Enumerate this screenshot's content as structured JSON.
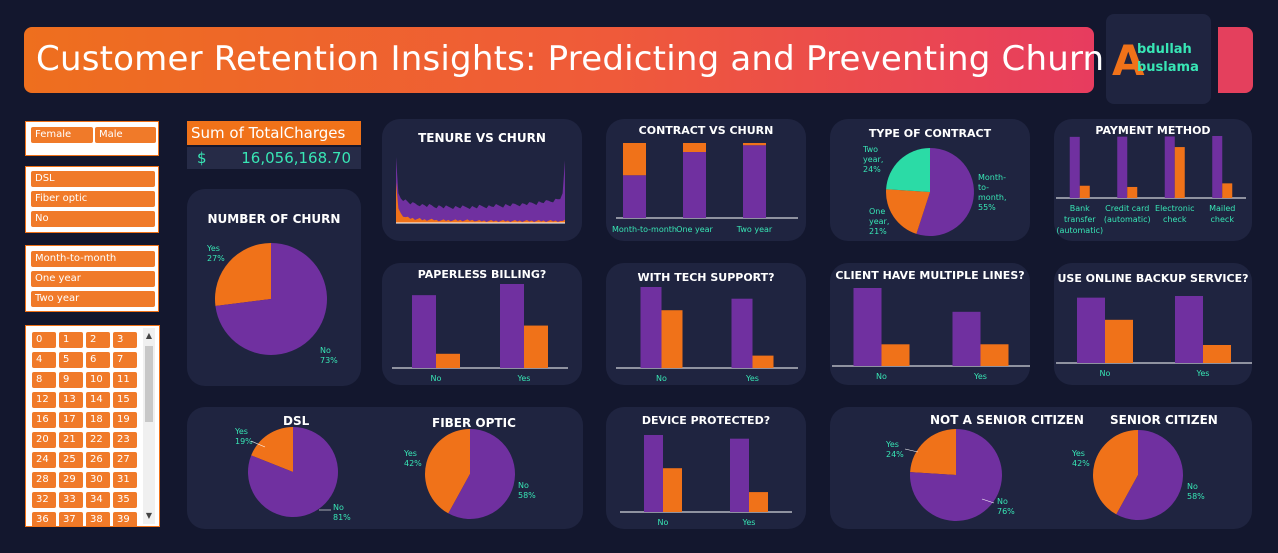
{
  "header": {
    "title": "Customer Retention Insights: Predicting and Preventing Churn"
  },
  "logo": {
    "initial": "A",
    "line1": "bdullah",
    "line2": "buslama"
  },
  "slicers": {
    "gender": [
      "Female",
      "Male"
    ],
    "internet": [
      "DSL",
      "Fiber optic",
      "No"
    ],
    "contract": [
      "Month-to-month",
      "One year",
      "Two year"
    ],
    "tenure": [
      "0",
      "1",
      "2",
      "3",
      "4",
      "5",
      "6",
      "7",
      "8",
      "9",
      "10",
      "11",
      "12",
      "13",
      "14",
      "15",
      "16",
      "17",
      "18",
      "19",
      "20",
      "21",
      "22",
      "23",
      "24",
      "25",
      "26",
      "27",
      "28",
      "29",
      "30",
      "31",
      "32",
      "33",
      "34",
      "35",
      "36",
      "37",
      "38",
      "39"
    ]
  },
  "kpi": {
    "label": "Sum of TotalCharges",
    "currency": "$",
    "value": "16,056,168.70"
  },
  "colors": {
    "churn_no": "#7030a0",
    "churn_yes": "#f07219",
    "teal": "#2bdba6",
    "accent_text": "#38e6b5"
  },
  "charts": {
    "number_of_churn": {
      "title": "NUMBER OF CHURN",
      "chart_data": {
        "type": "pie",
        "slices": [
          {
            "label": "Yes",
            "pct": "27%",
            "value": 27
          },
          {
            "label": "No",
            "pct": "73%",
            "value": 73
          }
        ]
      }
    },
    "tenure_vs_churn": {
      "title": "TENURE VS CHURN",
      "chart_data": {
        "type": "area",
        "x_range": [
          0,
          72
        ],
        "series": [
          {
            "values": [
              100,
              45,
              38,
              36,
              34,
              32,
              30,
              29,
              29,
              28,
              28,
              27,
              27,
              26,
              26,
              26,
              25,
              25,
              25,
              25,
              24,
              24,
              24,
              24,
              24,
              24,
              24,
              24,
              24,
              24,
              24,
              24,
              24,
              24,
              24,
              25,
              25,
              25,
              25,
              25,
              25,
              26,
              26,
              26,
              26,
              26,
              27,
              27,
              27,
              27,
              28,
              28,
              28,
              28,
              29,
              29,
              29,
              30,
              30,
              30,
              31,
              31,
              32,
              32,
              33,
              33,
              34,
              35,
              36,
              38,
              45,
              95
            ]
          },
          {
            "values": [
              62,
              22,
              14,
              11,
              9,
              8,
              7,
              7,
              6,
              6,
              6,
              5,
              5,
              5,
              5,
              5,
              5,
              4,
              4,
              4,
              4,
              4,
              4,
              4,
              4,
              4,
              4,
              4,
              4,
              4,
              4,
              4,
              4,
              4,
              3,
              3,
              3,
              3,
              3,
              3,
              3,
              3,
              3,
              3,
              3,
              3,
              3,
              3,
              3,
              3,
              3,
              3,
              3,
              3,
              3,
              3,
              3,
              3,
              3,
              3,
              3,
              3,
              3,
              3,
              3,
              3,
              3,
              3,
              3,
              3,
              3,
              5
            ]
          }
        ]
      }
    },
    "contract_vs_churn": {
      "title": "CONTRACT VS CHURN",
      "chart_data": {
        "type": "bar",
        "stacked": true,
        "categories": [
          "Month-to-month",
          "One year",
          "Two year"
        ],
        "series": [
          {
            "values": [
              57,
              88,
              97
            ]
          },
          {
            "values": [
              43,
              12,
              3
            ]
          }
        ]
      }
    },
    "type_of_contract": {
      "title": "TYPE OF CONTRACT",
      "chart_data": {
        "type": "pie",
        "slices": [
          {
            "label": "Month-to-month",
            "lines": [
              "Month-",
              "to-",
              "month,",
              "55%"
            ],
            "value": 55
          },
          {
            "label": "One year",
            "lines": [
              "One",
              "year,",
              "21%"
            ],
            "value": 21
          },
          {
            "label": "Two year",
            "lines": [
              "Two",
              "year,",
              "24%"
            ],
            "value": 24
          }
        ]
      }
    },
    "payment_method": {
      "title": "PAYMENT METHOD",
      "chart_data": {
        "type": "bar",
        "categories": [
          "Bank transfer (automatic)",
          "Credit card (automatic)",
          "Electronic check",
          "Mailed check"
        ],
        "category_lines": [
          [
            "Bank",
            "transfer",
            "(automatic)"
          ],
          [
            "Credit card",
            "(automatic)"
          ],
          [
            "Electronic",
            "check"
          ],
          [
            "Mailed",
            "check"
          ]
        ],
        "series": [
          {
            "values": [
              1286,
              1290,
              1294,
              1304
            ]
          },
          {
            "values": [
              258,
              232,
              1071,
              308
            ]
          }
        ]
      }
    },
    "paperless_billing": {
      "title": "PAPERLESS BILLING?",
      "chart_data": {
        "type": "bar",
        "categories": [
          "No",
          "Yes"
        ],
        "series": [
          {
            "values": [
              2403,
              2771
            ]
          },
          {
            "values": [
              469,
              1400
            ]
          }
        ]
      }
    },
    "tech_support": {
      "title": "WITH  TECH SUPPORT?",
      "chart_data": {
        "type": "bar",
        "categories": [
          "No",
          "Yes"
        ],
        "series": [
          {
            "values": [
              2027,
              1734
            ]
          },
          {
            "values": [
              1446,
              310
            ]
          }
        ]
      }
    },
    "multiple_lines": {
      "title": "CLIENT HAVE MULTIPLE LINES?",
      "chart_data": {
        "type": "bar",
        "categories": [
          "No",
          "Yes"
        ],
        "series": [
          {
            "values": [
              3053,
              2121
            ]
          },
          {
            "values": [
              849,
              850
            ]
          }
        ]
      }
    },
    "online_backup": {
      "title": "USE ONLINE BACKUP SERVICE?",
      "chart_data": {
        "type": "bar",
        "categories": [
          "No",
          "Yes"
        ],
        "series": [
          {
            "values": [
              3268,
              3350
            ]
          },
          {
            "values": [
              2160,
              900
            ]
          }
        ]
      }
    },
    "dsl": {
      "title": "DSL",
      "chart_data": {
        "type": "pie",
        "slices": [
          {
            "label": "Yes",
            "pct": "19%",
            "value": 19
          },
          {
            "label": "No",
            "pct": "81%",
            "value": 81
          }
        ]
      }
    },
    "fiber_optic": {
      "title": "FIBER OPTIC",
      "chart_data": {
        "type": "pie",
        "slices": [
          {
            "label": "Yes",
            "pct": "42%",
            "value": 42
          },
          {
            "label": "No",
            "pct": "58%",
            "value": 58
          }
        ]
      }
    },
    "device_protected": {
      "title": "DEVICE PROTECTED?",
      "chart_data": {
        "type": "bar",
        "categories": [
          "No",
          "Yes"
        ],
        "series": [
          {
            "values": [
              3095,
              2947
            ]
          },
          {
            "values": [
              1760,
              800
            ]
          }
        ]
      }
    },
    "not_senior": {
      "title": "NOT A SENIOR CITIZEN",
      "chart_data": {
        "type": "pie",
        "slices": [
          {
            "label": "Yes",
            "pct": "24%",
            "value": 24
          },
          {
            "label": "No",
            "pct": "76%",
            "value": 76
          }
        ]
      }
    },
    "senior": {
      "title": "SENIOR CITIZEN",
      "chart_data": {
        "type": "pie",
        "slices": [
          {
            "label": "Yes",
            "pct": "42%",
            "value": 42
          },
          {
            "label": "No",
            "pct": "58%",
            "value": 58
          }
        ]
      }
    }
  }
}
